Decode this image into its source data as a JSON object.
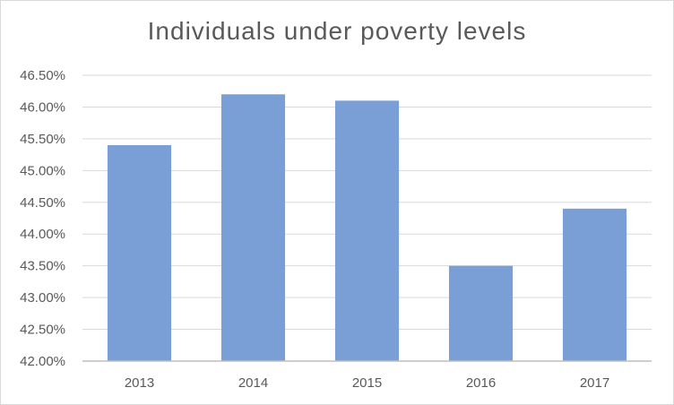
{
  "chart_data": {
    "type": "bar",
    "title": "Individuals under poverty levels",
    "xlabel": "",
    "ylabel": "",
    "categories": [
      "2013",
      "2014",
      "2015",
      "2016",
      "2017"
    ],
    "values": [
      45.4,
      46.2,
      46.1,
      43.5,
      44.4
    ],
    "ylim": [
      42.0,
      46.5
    ],
    "ytick_step": 0.5,
    "ytick_labels": [
      "42.00%",
      "42.50%",
      "43.00%",
      "43.50%",
      "44.00%",
      "44.50%",
      "45.00%",
      "45.50%",
      "46.00%",
      "46.50%"
    ],
    "grid": true,
    "legend": "none",
    "bar_color": "#7a9fd6",
    "grid_color": "#d9d9d9",
    "axis_color": "#bfbfbf"
  }
}
